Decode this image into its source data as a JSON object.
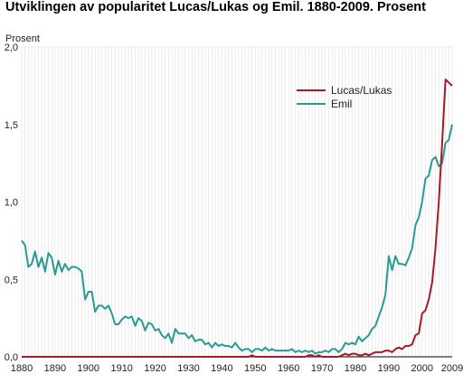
{
  "chart_data": {
    "type": "line",
    "title": "Utviklingen av popularitet Lucas/Lukas og Emil. 1880-2009. Prosent",
    "ylabel": "Prosent",
    "xlabel": "",
    "xlim": [
      1880,
      2009
    ],
    "ylim": [
      0,
      2.0
    ],
    "x_ticks": [
      "1880",
      "1890",
      "1900",
      "1910",
      "1920",
      "1930",
      "1940",
      "1950",
      "1960",
      "1970",
      "1980",
      "1990",
      "2000",
      "2009"
    ],
    "y_ticks": [
      "0,0",
      "0,5",
      "1,0",
      "1,5",
      "2,0"
    ],
    "grid": "vertical yearly",
    "legend_position": "top-right",
    "series": [
      {
        "name": "Lucas/Lukas",
        "color": "#a61b29",
        "x": [
          1880,
          1948,
          1949,
          1950,
          1965,
          1966,
          1967,
          1968,
          1969,
          1970,
          1975,
          1976,
          1977,
          1978,
          1979,
          1980,
          1981,
          1982,
          1983,
          1984,
          1985,
          1986,
          1987,
          1988,
          1989,
          1990,
          1991,
          1992,
          1993,
          1994,
          1995,
          1996,
          1997,
          1998,
          1999,
          2000,
          2001,
          2002,
          2003,
          2004,
          2005,
          2006,
          2007,
          2008,
          2009
        ],
        "y": [
          0,
          0,
          0.01,
          0,
          0,
          0.01,
          0.01,
          0,
          0.01,
          0,
          0,
          0.01,
          0.02,
          0.01,
          0.02,
          0.02,
          0.01,
          0.01,
          0.02,
          0.01,
          0.02,
          0.03,
          0.03,
          0.03,
          0.04,
          0.04,
          0.03,
          0.05,
          0.06,
          0.05,
          0.07,
          0.07,
          0.08,
          0.14,
          0.15,
          0.28,
          0.3,
          0.37,
          0.48,
          0.7,
          1.0,
          1.38,
          1.79,
          1.77,
          1.75
        ]
      },
      {
        "name": "Emil",
        "color": "#2a9a93",
        "x": [
          1880,
          1881,
          1882,
          1883,
          1884,
          1885,
          1886,
          1887,
          1888,
          1889,
          1890,
          1891,
          1892,
          1893,
          1894,
          1895,
          1896,
          1897,
          1898,
          1899,
          1900,
          1901,
          1902,
          1903,
          1904,
          1905,
          1906,
          1907,
          1908,
          1909,
          1910,
          1911,
          1912,
          1913,
          1914,
          1915,
          1916,
          1917,
          1918,
          1919,
          1920,
          1921,
          1922,
          1923,
          1924,
          1925,
          1926,
          1927,
          1928,
          1929,
          1930,
          1931,
          1932,
          1933,
          1934,
          1935,
          1936,
          1937,
          1938,
          1939,
          1940,
          1941,
          1942,
          1943,
          1944,
          1945,
          1946,
          1947,
          1948,
          1949,
          1950,
          1951,
          1952,
          1953,
          1954,
          1955,
          1956,
          1957,
          1958,
          1959,
          1960,
          1961,
          1962,
          1963,
          1964,
          1965,
          1966,
          1967,
          1968,
          1969,
          1970,
          1971,
          1972,
          1973,
          1974,
          1975,
          1976,
          1977,
          1978,
          1979,
          1980,
          1981,
          1982,
          1983,
          1984,
          1985,
          1986,
          1987,
          1988,
          1989,
          1990,
          1991,
          1992,
          1993,
          1994,
          1995,
          1996,
          1997,
          1998,
          1999,
          2000,
          2001,
          2002,
          2003,
          2004,
          2005,
          2006,
          2007,
          2008,
          2009
        ],
        "y": [
          0.75,
          0.72,
          0.58,
          0.6,
          0.68,
          0.58,
          0.64,
          0.55,
          0.67,
          0.64,
          0.53,
          0.62,
          0.55,
          0.6,
          0.56,
          0.58,
          0.58,
          0.57,
          0.55,
          0.37,
          0.42,
          0.42,
          0.29,
          0.33,
          0.33,
          0.31,
          0.33,
          0.28,
          0.21,
          0.21,
          0.24,
          0.26,
          0.25,
          0.26,
          0.2,
          0.25,
          0.23,
          0.17,
          0.22,
          0.21,
          0.17,
          0.18,
          0.14,
          0.12,
          0.15,
          0.09,
          0.18,
          0.15,
          0.15,
          0.15,
          0.12,
          0.14,
          0.1,
          0.11,
          0.11,
          0.08,
          0.09,
          0.06,
          0.09,
          0.07,
          0.08,
          0.07,
          0.07,
          0.06,
          0.09,
          0.06,
          0.04,
          0.05,
          0.05,
          0.03,
          0.05,
          0.05,
          0.04,
          0.06,
          0.04,
          0.05,
          0.04,
          0.04,
          0.04,
          0.04,
          0.04,
          0.05,
          0.03,
          0.04,
          0.03,
          0.04,
          0.03,
          0.04,
          0.02,
          0.03,
          0.03,
          0.04,
          0.03,
          0.05,
          0.05,
          0.03,
          0.05,
          0.09,
          0.08,
          0.09,
          0.08,
          0.13,
          0.1,
          0.12,
          0.14,
          0.18,
          0.2,
          0.26,
          0.32,
          0.4,
          0.65,
          0.56,
          0.65,
          0.6,
          0.6,
          0.59,
          0.64,
          0.7,
          0.85,
          0.9,
          1.0,
          1.15,
          1.17,
          1.27,
          1.29,
          1.23,
          1.25,
          1.38,
          1.4,
          1.5
        ]
      }
    ]
  }
}
